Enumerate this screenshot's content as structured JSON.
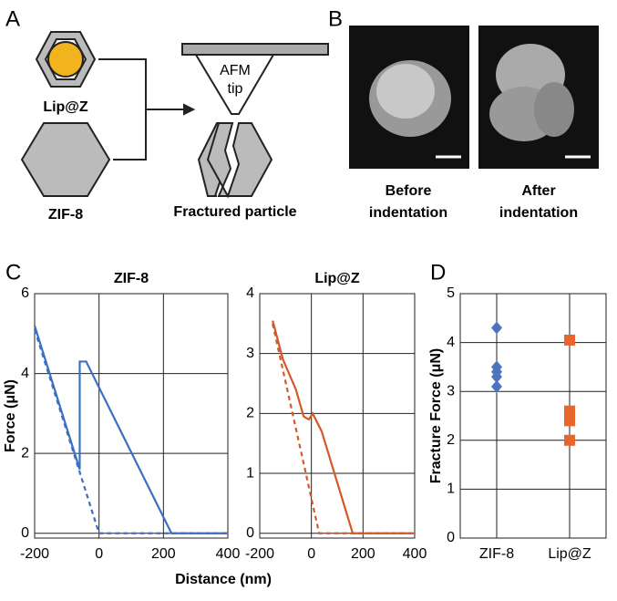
{
  "panels": {
    "a": "A",
    "b": "B",
    "c": "C",
    "d": "D"
  },
  "diagram": {
    "lipz": "Lip@Z",
    "zif8": "ZIF-8",
    "tip": [
      "AFM",
      "tip"
    ],
    "fractured": "Fractured particle"
  },
  "images": {
    "before": [
      "Before",
      "indentation"
    ],
    "after": [
      "After",
      "indentation"
    ]
  },
  "chart_data": [
    {
      "type": "line",
      "title": "ZIF-8",
      "xlabel": "Distance (nm)",
      "ylabel": "Force (μN)",
      "xlim": [
        -200,
        400
      ],
      "ylim": [
        -0.12,
        6
      ],
      "xticks": [
        -200,
        0,
        200,
        400
      ],
      "yticks": [
        0,
        2,
        4,
        6
      ],
      "grid": true,
      "series": [
        {
          "color": "#3b70c2",
          "dashed": false,
          "x": [
            -200,
            -60,
            -60,
            -40,
            225,
            400
          ],
          "values": [
            5.2,
            1.6,
            4.3,
            4.3,
            0,
            0
          ]
        },
        {
          "color": "#3b70c2",
          "dashed": true,
          "x": [
            -200,
            0,
            400
          ],
          "values": [
            5.1,
            0,
            0
          ]
        }
      ]
    },
    {
      "type": "line",
      "title": "Lip@Z",
      "xlim": [
        -200,
        400
      ],
      "ylim": [
        -0.08,
        4
      ],
      "xticks": [
        -200,
        0,
        200,
        400
      ],
      "yticks": [
        0,
        1,
        2,
        3,
        4
      ],
      "grid": true,
      "series": [
        {
          "color": "#d4592a",
          "dashed": false,
          "x": [
            -150,
            -110,
            -60,
            -30,
            -10,
            5,
            40,
            160,
            400
          ],
          "values": [
            3.55,
            2.9,
            2.4,
            1.95,
            1.9,
            2.0,
            1.7,
            0,
            0
          ]
        },
        {
          "color": "#d4592a",
          "dashed": true,
          "x": [
            -150,
            30,
            400
          ],
          "values": [
            3.5,
            0,
            0
          ]
        }
      ]
    },
    {
      "type": "strip",
      "ylabel": "Fracture Force (μN)",
      "ylim": [
        0,
        5
      ],
      "yticks": [
        0,
        1,
        2,
        3,
        4,
        5
      ],
      "grid": true,
      "categories": [
        "ZIF-8",
        "Lip@Z"
      ],
      "values": [
        [
          4.3,
          3.5,
          3.4,
          3.3,
          3.1
        ],
        [
          4.05,
          2.6,
          2.4,
          2.0
        ]
      ],
      "colors": [
        "#4d74c0",
        "#e8662c"
      ],
      "markers": [
        "diamond",
        "square"
      ]
    }
  ]
}
